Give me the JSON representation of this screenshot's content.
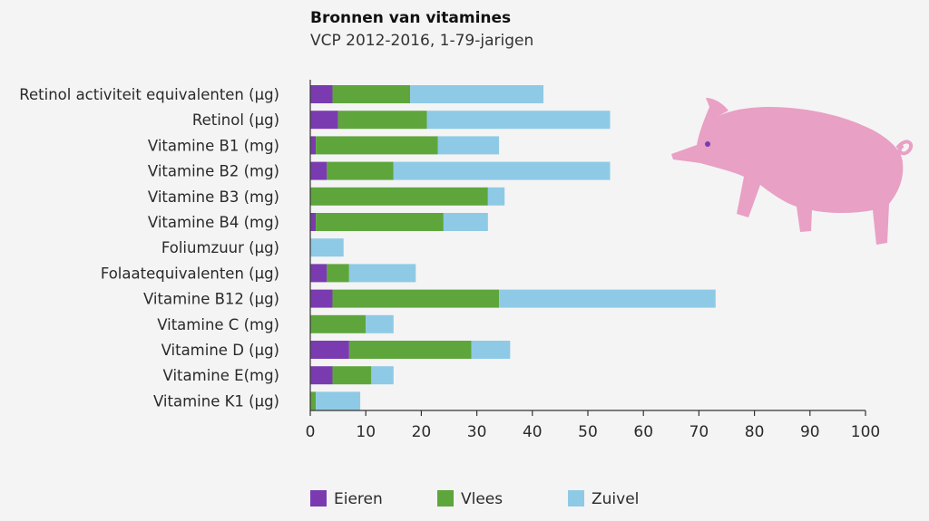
{
  "chart_data": {
    "type": "bar",
    "orientation": "horizontal",
    "stacked": true,
    "title": "Bronnen van vitamines",
    "subtitle": "VCP 2012-2016, 1-79-jarigen",
    "xlabel": "",
    "ylabel": "",
    "xlim": [
      0,
      100
    ],
    "x_ticks": [
      0,
      10,
      20,
      30,
      40,
      50,
      60,
      70,
      80,
      90,
      100
    ],
    "grid": false,
    "legend_position": "bottom",
    "categories": [
      "Retinol activiteit equivalenten (µg)",
      "Retinol (µg)",
      "Vitamine B1 (mg)",
      "Vitamine B2 (mg)",
      "Vitamine B3 (mg)",
      "Vitamine B4 (mg)",
      "Foliumzuur (µg)",
      "Folaatequivalenten (µg)",
      "Vitamine B12 (µg)",
      "Vitamine C (mg)",
      "Vitamine D (µg)",
      "Vitamine E(mg)",
      "Vitamine K1 (µg)"
    ],
    "series": [
      {
        "name": "Eieren",
        "color": "#7b3bb0",
        "values": [
          4,
          5,
          1,
          3,
          0,
          1,
          0,
          3,
          4,
          0,
          7,
          4,
          0
        ]
      },
      {
        "name": "Vlees",
        "color": "#5ea63c",
        "values": [
          14,
          16,
          22,
          12,
          32,
          23,
          0,
          4,
          30,
          10,
          22,
          7,
          1
        ]
      },
      {
        "name": "Zuivel",
        "color": "#8ecae6",
        "values": [
          24,
          33,
          11,
          39,
          3,
          8,
          6,
          12,
          39,
          5,
          7,
          4,
          8
        ]
      }
    ]
  },
  "decoration": {
    "illustration": "pig-icon",
    "color": "#e8a0c4"
  }
}
